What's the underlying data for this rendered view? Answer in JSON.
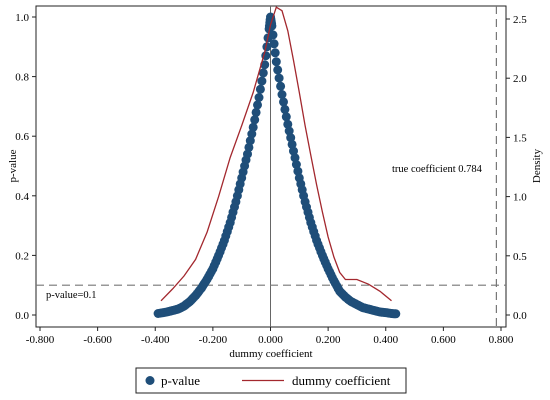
{
  "chart_data": {
    "type": "scatter",
    "xlabel": "dummy coefficient",
    "ylabel_left": "p-value",
    "ylabel_right": "Density",
    "xlim": [
      -0.8,
      0.8
    ],
    "ylim_left": [
      0,
      1
    ],
    "ylim_right": [
      0,
      2.6
    ],
    "x_ticks": [
      "-0.800",
      "-0.600",
      "-0.400",
      "-0.200",
      "0.000",
      "0.200",
      "0.400",
      "0.600",
      "0.800"
    ],
    "y_left_ticks": [
      "0.0",
      "0.2",
      "0.4",
      "0.6",
      "0.8",
      "1.0"
    ],
    "y_right_ticks": [
      "0.0",
      "0.5",
      "1.0",
      "1.5",
      "2.0",
      "2.5"
    ],
    "reference_lines": {
      "pvalue_threshold": 0.1,
      "true_coefficient": 0.784,
      "zero_line": 0
    },
    "annotations": {
      "pvalue_label": "p-value=0.1",
      "true_coef_label": "true coefficient 0.784"
    },
    "series": [
      {
        "name": "p-value",
        "kind": "scatter",
        "color": "#1f4e79",
        "points": [
          [
            -0.39,
            0.005
          ],
          [
            -0.36,
            0.01
          ],
          [
            -0.34,
            0.015
          ],
          [
            -0.32,
            0.02
          ],
          [
            -0.3,
            0.03
          ],
          [
            -0.28,
            0.045
          ],
          [
            -0.26,
            0.065
          ],
          [
            -0.24,
            0.09
          ],
          [
            -0.22,
            0.12
          ],
          [
            -0.2,
            0.155
          ],
          [
            -0.18,
            0.2
          ],
          [
            -0.16,
            0.25
          ],
          [
            -0.14,
            0.31
          ],
          [
            -0.12,
            0.38
          ],
          [
            -0.1,
            0.46
          ],
          [
            -0.08,
            0.54
          ],
          [
            -0.06,
            0.63
          ],
          [
            -0.04,
            0.73
          ],
          [
            -0.02,
            0.84
          ],
          [
            -0.005,
            0.96
          ],
          [
            0.0,
            1.0
          ],
          [
            0.005,
            0.97
          ],
          [
            0.02,
            0.85
          ],
          [
            0.04,
            0.74
          ],
          [
            0.06,
            0.64
          ],
          [
            0.08,
            0.55
          ],
          [
            0.1,
            0.46
          ],
          [
            0.12,
            0.38
          ],
          [
            0.14,
            0.31
          ],
          [
            0.16,
            0.25
          ],
          [
            0.18,
            0.2
          ],
          [
            0.2,
            0.155
          ],
          [
            0.22,
            0.115
          ],
          [
            0.24,
            0.08
          ],
          [
            0.26,
            0.06
          ],
          [
            0.28,
            0.045
          ],
          [
            0.3,
            0.035
          ],
          [
            0.32,
            0.025
          ],
          [
            0.34,
            0.02
          ],
          [
            0.36,
            0.015
          ],
          [
            0.38,
            0.01
          ],
          [
            0.4,
            0.008
          ],
          [
            0.42,
            0.005
          ],
          [
            0.435,
            0.004
          ]
        ]
      },
      {
        "name": "dummy coefficient",
        "kind": "line",
        "axis": "right",
        "color": "#a3282e",
        "points": [
          [
            -0.38,
            0.12
          ],
          [
            -0.34,
            0.22
          ],
          [
            -0.3,
            0.33
          ],
          [
            -0.26,
            0.47
          ],
          [
            -0.22,
            0.7
          ],
          [
            -0.18,
            1.0
          ],
          [
            -0.14,
            1.33
          ],
          [
            -0.1,
            1.6
          ],
          [
            -0.06,
            1.88
          ],
          [
            -0.02,
            2.22
          ],
          [
            0.0,
            2.45
          ],
          [
            0.02,
            2.6
          ],
          [
            0.04,
            2.57
          ],
          [
            0.06,
            2.4
          ],
          [
            0.08,
            2.15
          ],
          [
            0.1,
            1.88
          ],
          [
            0.12,
            1.6
          ],
          [
            0.14,
            1.35
          ],
          [
            0.16,
            1.1
          ],
          [
            0.18,
            0.87
          ],
          [
            0.2,
            0.66
          ],
          [
            0.22,
            0.49
          ],
          [
            0.24,
            0.36
          ],
          [
            0.26,
            0.3
          ],
          [
            0.3,
            0.3
          ],
          [
            0.34,
            0.26
          ],
          [
            0.38,
            0.2
          ],
          [
            0.42,
            0.12
          ]
        ]
      }
    ]
  }
}
